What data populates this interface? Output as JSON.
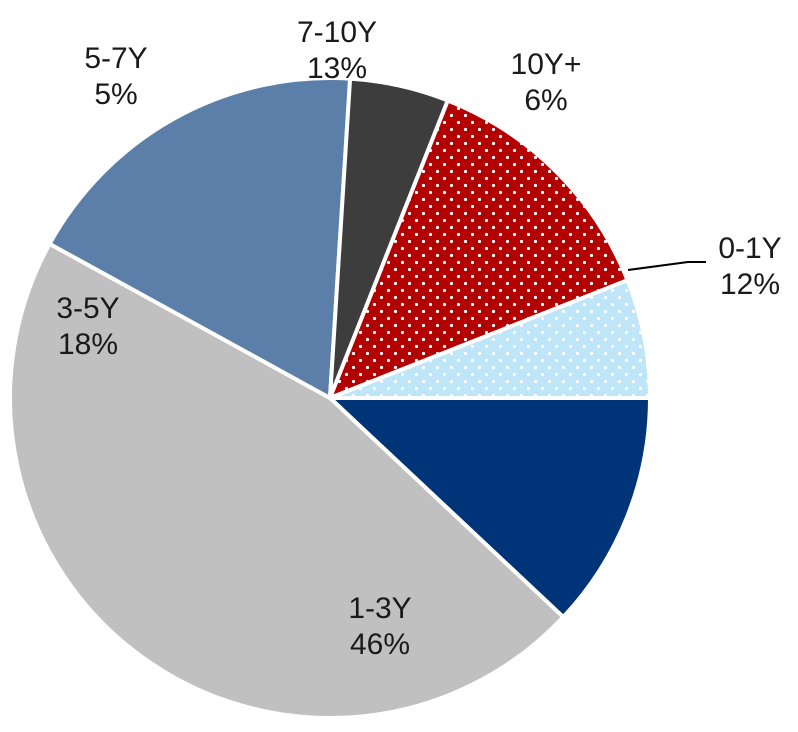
{
  "chart_data": {
    "type": "pie",
    "title": "",
    "start_angle_deg": 0,
    "direction": "clockwise",
    "slices": [
      {
        "label": "0-1Y",
        "pct_label": "12%",
        "value": 12,
        "color": "#003478",
        "pattern": "solid"
      },
      {
        "label": "1-3Y",
        "pct_label": "46%",
        "value": 46,
        "color": "#c0c0c0",
        "pattern": "solid"
      },
      {
        "label": "3-5Y",
        "pct_label": "18%",
        "value": 18,
        "color": "#5b7fa8",
        "pattern": "solid"
      },
      {
        "label": "5-7Y",
        "pct_label": "5%",
        "value": 5,
        "color": "#3d3d3d",
        "pattern": "solid"
      },
      {
        "label": "7-10Y",
        "pct_label": "13%",
        "value": 13,
        "color": "#b30000",
        "pattern": "dots"
      },
      {
        "label": "10Y+",
        "pct_label": "6%",
        "value": 6,
        "color": "#bfe6f8",
        "pattern": "dots"
      }
    ],
    "legend": "none",
    "border_color": "#ffffff"
  }
}
